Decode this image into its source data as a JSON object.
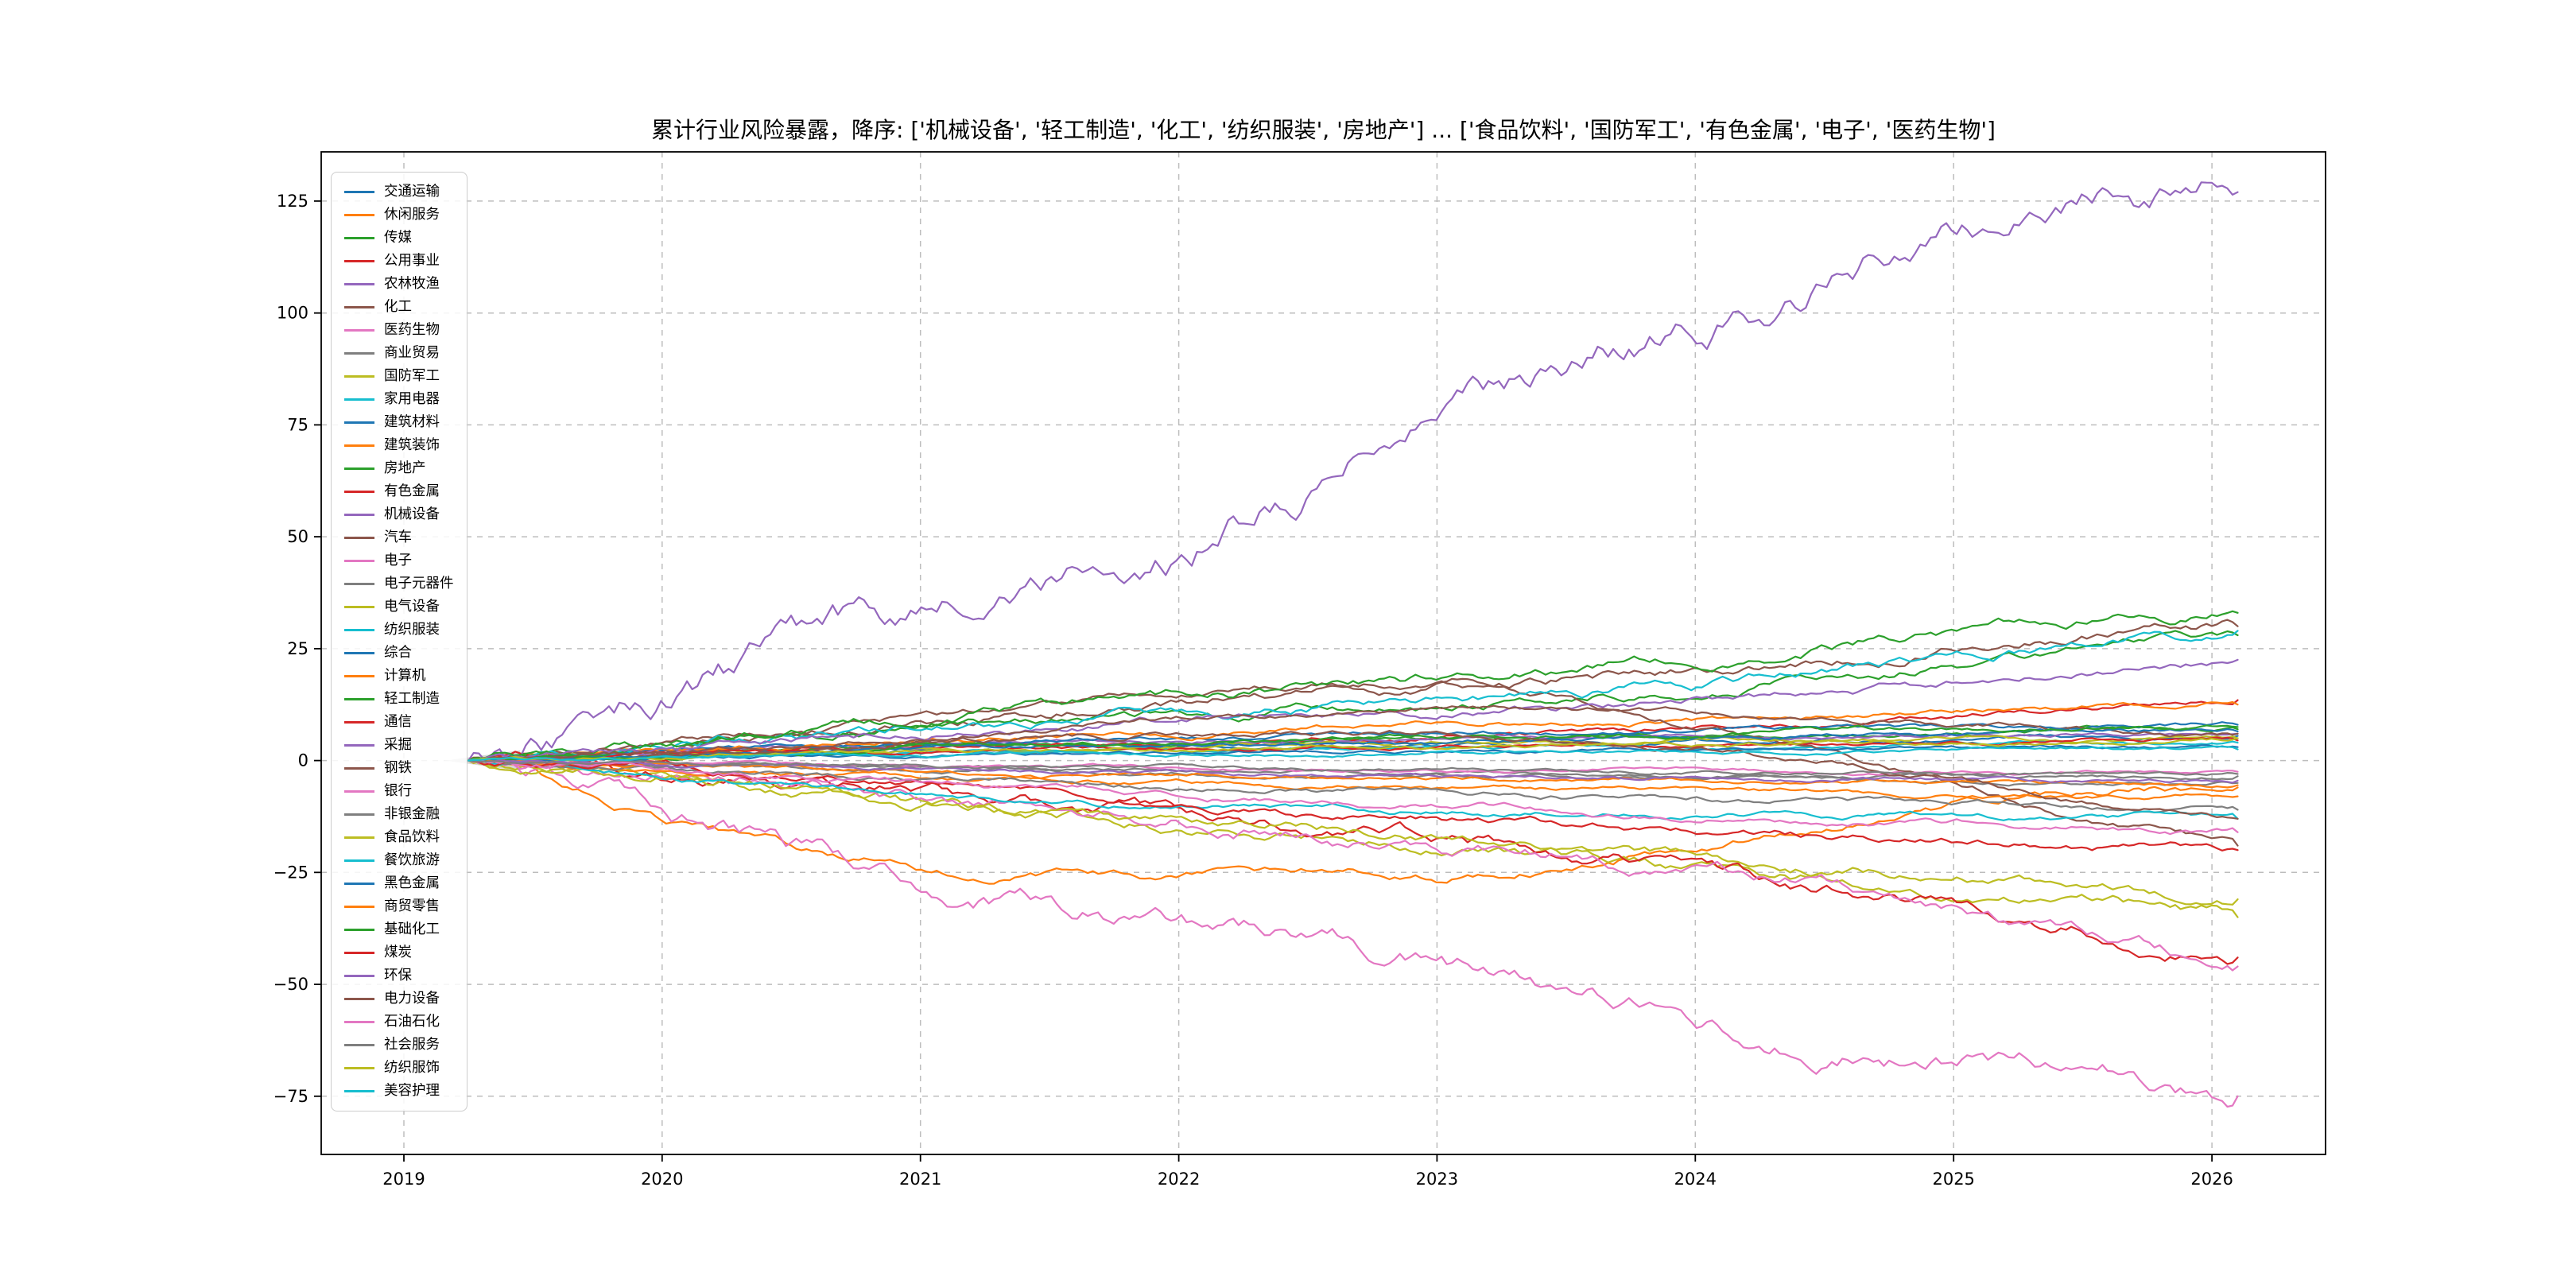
{
  "chart_data": {
    "type": "line",
    "title": "累计行业风险暴露，降序: ['机械设备', '轻工制造', '化工', '纺织服装', '房地产'] ... ['食品饮料', '国防军工', '有色金属', '电子', '医药生物']",
    "xlabel": "",
    "ylabel": "",
    "grid": "dashed",
    "legend_position": "upper-left",
    "xlim": [
      2018.68,
      2026.44
    ],
    "ylim": [
      -88,
      136
    ],
    "xticks": [
      2019,
      2020,
      2021,
      2022,
      2023,
      2024,
      2025,
      2026
    ],
    "xticklabels": [
      "2019",
      "2020",
      "2021",
      "2022",
      "2023",
      "2024",
      "2025",
      "2026"
    ],
    "yticks": [
      -75,
      -50,
      -25,
      0,
      25,
      50,
      75,
      100,
      125
    ],
    "yticklabels": [
      "−75",
      "−50",
      "−25",
      "0",
      "25",
      "50",
      "75",
      "100",
      "125"
    ],
    "x_keyframes": [
      2019.25,
      2019.5,
      2020.0,
      2020.5,
      2021.0,
      2021.5,
      2022.0,
      2022.5,
      2023.0,
      2023.5,
      2024.0,
      2024.5,
      2025.0,
      2025.5,
      2026.1
    ],
    "series": [
      {
        "name": "交通运输",
        "color": "#1f77b4",
        "values": [
          0,
          0.3,
          1,
          1.5,
          2,
          2.5,
          3,
          3,
          3.5,
          4,
          4,
          4.5,
          5,
          5,
          5.5
        ]
      },
      {
        "name": "休闲服务",
        "color": "#ff7f0e",
        "values": [
          0,
          -3,
          -13,
          -19,
          -24,
          -25,
          -26,
          -25,
          -26,
          -23,
          -19,
          -14,
          -10,
          -7,
          -6
        ]
      },
      {
        "name": "传媒",
        "color": "#2ca02c",
        "values": [
          0,
          0.5,
          1,
          2,
          2.5,
          3,
          3.5,
          4,
          4.5,
          5,
          5.5,
          6,
          6,
          6.5,
          7
        ]
      },
      {
        "name": "公用事业",
        "color": "#d62728",
        "values": [
          0,
          0.5,
          1.5,
          2,
          3,
          3.5,
          4,
          5,
          5.5,
          6,
          7,
          8,
          9.5,
          11.5,
          13.5
        ]
      },
      {
        "name": "农林牧渔",
        "color": "#9467bd",
        "values": [
          0,
          0.5,
          2,
          3,
          3.5,
          4,
          4,
          4.5,
          5,
          5,
          5.5,
          5.5,
          6,
          6,
          6
        ]
      },
      {
        "name": "化工",
        "color": "#8c564b",
        "values": [
          0,
          1,
          3,
          6,
          9,
          11,
          13,
          15,
          16,
          18,
          20,
          22,
          25,
          28,
          30
        ]
      },
      {
        "name": "医药生物",
        "color": "#e377c2",
        "values": [
          0,
          -3,
          -12,
          -20,
          -27,
          -32,
          -37,
          -41,
          -45,
          -51,
          -57,
          -62,
          -66,
          -69,
          -75
        ]
      },
      {
        "name": "商业贸易",
        "color": "#7f7f7f",
        "values": [
          0,
          -0.5,
          -1,
          -1.5,
          -2,
          -2,
          -2.5,
          -3,
          -3,
          -3.5,
          -4,
          -4,
          -4.5,
          -5,
          -5
        ]
      },
      {
        "name": "国防军工",
        "color": "#bcbd22",
        "values": [
          0,
          -1,
          -4,
          -7,
          -10,
          -12,
          -14,
          -16,
          -18,
          -21,
          -24,
          -27,
          -30,
          -32,
          -35
        ]
      },
      {
        "name": "家用电器",
        "color": "#17becf",
        "values": [
          0,
          0.5,
          1,
          1.5,
          2,
          2,
          2,
          2.5,
          2.5,
          3,
          3,
          3,
          3.5,
          3.5,
          4
        ]
      },
      {
        "name": "建筑材料",
        "color": "#1f77b4",
        "values": [
          0,
          0.5,
          2,
          3,
          4,
          4.5,
          5,
          5.5,
          6,
          6,
          6.5,
          7,
          7,
          7.5,
          8
        ]
      },
      {
        "name": "建筑装饰",
        "color": "#ff7f0e",
        "values": [
          0,
          0.5,
          2,
          3,
          4,
          5,
          6,
          7,
          8,
          8.5,
          9,
          10,
          11,
          12,
          12.5
        ]
      },
      {
        "name": "房地产",
        "color": "#2ca02c",
        "values": [
          0,
          1,
          3,
          5,
          7,
          9,
          10,
          11,
          12,
          14,
          16,
          19,
          22,
          25,
          28
        ]
      },
      {
        "name": "有色金属",
        "color": "#d62728",
        "values": [
          0,
          -1,
          -4,
          -6,
          -8,
          -10,
          -12,
          -14,
          -17,
          -21,
          -25,
          -29,
          -33,
          -38,
          -44
        ]
      },
      {
        "name": "机械设备",
        "color": "#9467bd",
        "values": [
          0,
          4,
          13,
          24,
          33,
          40,
          47,
          62,
          77,
          87,
          97,
          108,
          118,
          123,
          127
        ]
      },
      {
        "name": "汽车",
        "color": "#8c564b",
        "values": [
          0,
          1,
          4,
          7,
          10,
          13,
          15,
          17,
          18,
          14,
          8,
          2,
          -5,
          -12,
          -19
        ]
      },
      {
        "name": "电子",
        "color": "#e377c2",
        "values": [
          0,
          -1,
          -3,
          -5,
          -8,
          -10,
          -13,
          -16,
          -20,
          -22,
          -25,
          -28,
          -33,
          -40,
          -46
        ]
      },
      {
        "name": "电子元器件",
        "color": "#7f7f7f",
        "values": [
          0,
          -0.3,
          -1,
          -1,
          -1.5,
          -2,
          -2,
          -2,
          -2.5,
          -2.5,
          -3,
          -3,
          -3,
          -3.5,
          -3.5
        ]
      },
      {
        "name": "电气设备",
        "color": "#bcbd22",
        "values": [
          0,
          0.5,
          1,
          2,
          2.5,
          3,
          3,
          3.5,
          4,
          4,
          4.5,
          4.5,
          5,
          5,
          5
        ]
      },
      {
        "name": "纺织服装",
        "color": "#17becf",
        "values": [
          0,
          1,
          3,
          5,
          7,
          9,
          11,
          12,
          13,
          15,
          17,
          20,
          23,
          26,
          29
        ]
      },
      {
        "name": "综合",
        "color": "#1f77b4",
        "values": [
          0,
          0.2,
          0.5,
          1,
          1,
          1.5,
          1.5,
          2,
          2,
          2,
          2.5,
          2.5,
          2.5,
          3,
          3
        ]
      },
      {
        "name": "计算机",
        "color": "#ff7f0e",
        "values": [
          0,
          -0.5,
          -2,
          -3,
          -4,
          -4.5,
          -5,
          -5.5,
          -6,
          -6.5,
          -7,
          -7,
          -7.5,
          -8,
          -8
        ]
      },
      {
        "name": "轻工制造",
        "color": "#2ca02c",
        "values": [
          0,
          1,
          4,
          7,
          10,
          12,
          14,
          16,
          18,
          20,
          23,
          26,
          29,
          31,
          33
        ]
      },
      {
        "name": "通信",
        "color": "#d62728",
        "values": [
          0,
          0.3,
          1,
          1.5,
          2,
          2.5,
          2.5,
          3,
          3,
          3.5,
          3.5,
          4,
          4,
          4.5,
          4.5
        ]
      },
      {
        "name": "采掘",
        "color": "#9467bd",
        "values": [
          0,
          0.5,
          2,
          4,
          6,
          8,
          9,
          10,
          11,
          12,
          13.5,
          15,
          17,
          20,
          22.5
        ]
      },
      {
        "name": "钢铁",
        "color": "#8c564b",
        "values": [
          0,
          0.5,
          2,
          4,
          6,
          8,
          10,
          11,
          12,
          11.5,
          10.5,
          9.5,
          8.5,
          7,
          6
        ]
      },
      {
        "name": "银行",
        "color": "#e377c2",
        "values": [
          0,
          -0.2,
          -0.5,
          -1,
          -1,
          -1.5,
          -1.5,
          -2,
          -2,
          -2,
          -2,
          -2.5,
          -2.5,
          -2.5,
          -2.5
        ]
      },
      {
        "name": "非银金融",
        "color": "#7f7f7f",
        "values": [
          0,
          -0.5,
          -2,
          -3,
          -4,
          -5,
          -6,
          -6.5,
          -7,
          -8,
          -8.5,
          -9,
          -10,
          -10.5,
          -11
        ]
      },
      {
        "name": "食品饮料",
        "color": "#bcbd22",
        "values": [
          0,
          -1,
          -3,
          -6,
          -9,
          -11,
          -13,
          -15,
          -17,
          -19,
          -21,
          -24,
          -26,
          -29,
          -31
        ]
      },
      {
        "name": "餐饮旅游",
        "color": "#17becf",
        "values": [
          0,
          -1,
          -4,
          -6,
          -8,
          -9,
          -10,
          -10.5,
          -11,
          -11.5,
          -12,
          -12,
          -12.5,
          -13,
          -13
        ]
      },
      {
        "name": "黑色金属",
        "color": "#1f77b4",
        "values": [
          0,
          0.3,
          1,
          2,
          3,
          3.5,
          4,
          4,
          4.5,
          5,
          5,
          5.5,
          6,
          6,
          6.5
        ]
      },
      {
        "name": "商贸零售",
        "color": "#ff7f0e",
        "values": [
          0,
          -0.3,
          -1,
          -2,
          -2.5,
          -3,
          -3,
          -3.5,
          -4,
          -4,
          -4.5,
          -5,
          -5,
          -5,
          -5.5
        ]
      },
      {
        "name": "基础化工",
        "color": "#2ca02c",
        "values": [
          0,
          0.5,
          1,
          2,
          3,
          3.5,
          4,
          4.5,
          5,
          5.5,
          6,
          6.5,
          7,
          7,
          7.5
        ]
      },
      {
        "name": "煤炭",
        "color": "#d62728",
        "values": [
          0,
          -0.5,
          -2,
          -4,
          -6,
          -8,
          -10,
          -12,
          -13,
          -15,
          -16,
          -17,
          -18,
          -19,
          -20
        ]
      },
      {
        "name": "环保",
        "color": "#9467bd",
        "values": [
          0,
          -0.3,
          -1,
          -1.5,
          -2,
          -2.5,
          -2.5,
          -3,
          -3,
          -3.5,
          -3.5,
          -4,
          -4,
          -4.5,
          -4.5
        ]
      },
      {
        "name": "电力设备",
        "color": "#8c564b",
        "values": [
          0,
          0.5,
          2,
          3,
          4,
          5,
          6,
          6.5,
          7,
          5,
          3,
          0,
          -4,
          -9,
          -13
        ]
      },
      {
        "name": "石油石化",
        "color": "#e377c2",
        "values": [
          0,
          -0.5,
          -2,
          -4,
          -5,
          -6,
          -8,
          -9,
          -10,
          -11,
          -12,
          -13,
          -14,
          -15,
          -16
        ]
      },
      {
        "name": "社会服务",
        "color": "#7f7f7f",
        "values": [
          0,
          -0.2,
          -0.5,
          -1,
          -1,
          -1.5,
          -1.5,
          -2,
          -2,
          -2.5,
          -2.5,
          -3,
          -3,
          -3,
          -3
        ]
      },
      {
        "name": "纺织服饰",
        "color": "#bcbd22",
        "values": [
          0,
          0.3,
          1,
          1.5,
          2,
          2.5,
          2.5,
          3,
          3,
          3.5,
          3.5,
          4,
          4,
          4.5,
          5
        ]
      },
      {
        "name": "美容护理",
        "color": "#17becf",
        "values": [
          0,
          0.2,
          0.5,
          1,
          1,
          1.5,
          1.5,
          1.5,
          2,
          2,
          2,
          2,
          2.5,
          2.5,
          2.5
        ]
      }
    ]
  }
}
